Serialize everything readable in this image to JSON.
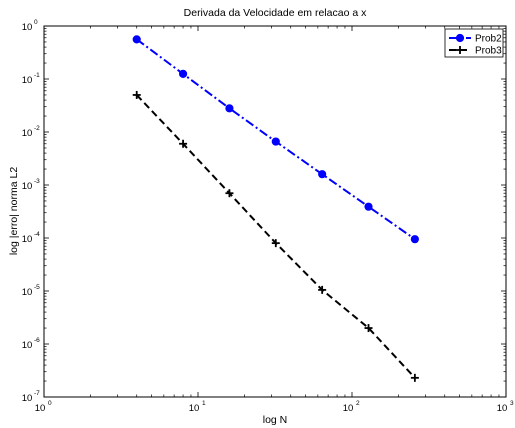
{
  "chart_data": {
    "type": "line",
    "title": "Derivada da Velocidade em relacao a x",
    "xlabel": "log N",
    "ylabel": "log |erro| norma L2",
    "xscale": "log",
    "yscale": "log",
    "xlim": [
      1,
      1000
    ],
    "ylim": [
      1e-07,
      1
    ],
    "x_ticks": [
      {
        "base": "10",
        "exp": "0"
      },
      {
        "base": "10",
        "exp": "1"
      },
      {
        "base": "10",
        "exp": "2"
      },
      {
        "base": "10",
        "exp": "3"
      }
    ],
    "y_ticks": [
      {
        "base": "10",
        "exp": "-7"
      },
      {
        "base": "10",
        "exp": "-6"
      },
      {
        "base": "10",
        "exp": "-5"
      },
      {
        "base": "10",
        "exp": "-4"
      },
      {
        "base": "10",
        "exp": "-3"
      },
      {
        "base": "10",
        "exp": "-2"
      },
      {
        "base": "10",
        "exp": "-1"
      },
      {
        "base": "10",
        "exp": "0"
      }
    ],
    "grid": false,
    "legend_position": "top-right",
    "series": [
      {
        "name": "Prob2",
        "color": "#0000ff",
        "line_style": "dash-dot",
        "marker": "circle",
        "x": [
          4,
          8,
          16,
          32,
          64,
          128,
          256
        ],
        "y": [
          0.56,
          0.125,
          0.028,
          0.0066,
          0.0016,
          0.00039,
          9.5e-05
        ]
      },
      {
        "name": "Prob3",
        "color": "#000000",
        "line_style": "dashed",
        "marker": "plus",
        "x": [
          4,
          8,
          16,
          32,
          64,
          128,
          256
        ],
        "y": [
          0.05,
          0.006,
          0.0007,
          8e-05,
          1.05e-05,
          2e-06,
          2.3e-07
        ]
      }
    ]
  }
}
